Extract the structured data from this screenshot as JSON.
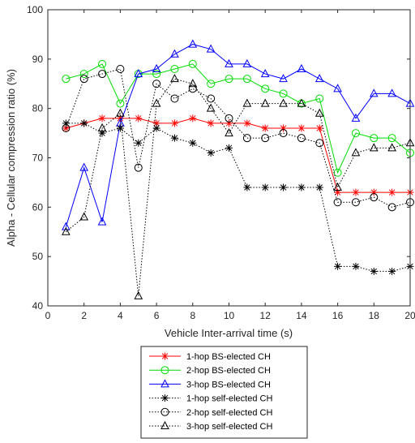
{
  "chart_data": {
    "type": "line",
    "xlabel": "Vehicle Inter-arrival time (s)",
    "ylabel": "Alpha - Cellular compression ratio (%)",
    "xlim": [
      0,
      20
    ],
    "ylim": [
      40,
      100
    ],
    "xticks": [
      "0",
      "2",
      "4",
      "6",
      "8",
      "10",
      "12",
      "14",
      "16",
      "18",
      "20"
    ],
    "yticks": [
      "40",
      "50",
      "60",
      "70",
      "80",
      "90",
      "100"
    ],
    "grid": false,
    "legend_position": "below plot",
    "x": [
      1,
      2,
      3,
      4,
      5,
      6,
      7,
      8,
      9,
      10,
      11,
      12,
      13,
      14,
      15,
      16,
      17,
      18,
      19,
      20
    ],
    "series": [
      {
        "name": "1-hop BS-elected CH",
        "color": "#ff0000",
        "marker": "asterisk",
        "linestyle": "solid",
        "values": [
          76,
          77,
          78,
          78,
          78,
          77,
          77,
          78,
          77,
          77,
          77,
          76,
          76,
          76,
          76,
          63,
          63,
          63,
          63,
          63
        ]
      },
      {
        "name": "2-hop BS-elected CH",
        "color": "#00dd00",
        "marker": "circle",
        "linestyle": "solid",
        "values": [
          86,
          87,
          89,
          81,
          87,
          87,
          88,
          89,
          85,
          86,
          86,
          84,
          83,
          81,
          82,
          67,
          75,
          74,
          74,
          71
        ]
      },
      {
        "name": "3-hop BS-elected CH",
        "color": "#0000ff",
        "marker": "triangle",
        "linestyle": "solid",
        "values": [
          56,
          68,
          57,
          77,
          87,
          88,
          91,
          93,
          92,
          89,
          89,
          87,
          86,
          88,
          86,
          84,
          78,
          83,
          83,
          81
        ]
      },
      {
        "name": "1-hop self-elected CH",
        "color": "#000000",
        "marker": "asterisk",
        "linestyle": "dotted",
        "values": [
          77,
          77,
          75,
          76,
          73,
          76,
          74,
          73,
          71,
          72,
          64,
          64,
          64,
          64,
          64,
          48,
          48,
          47,
          47,
          48
        ]
      },
      {
        "name": "2-hop self-elected CH",
        "color": "#000000",
        "marker": "circle",
        "linestyle": "dotted",
        "values": [
          76,
          86,
          87,
          88,
          68,
          85,
          82,
          84,
          82,
          78,
          74,
          74,
          75,
          74,
          73,
          61,
          61,
          62,
          60,
          61
        ]
      },
      {
        "name": "3-hop self-elected CH",
        "color": "#000000",
        "marker": "triangle",
        "linestyle": "dotted",
        "values": [
          55,
          58,
          76,
          79,
          42,
          81,
          86,
          85,
          80,
          75,
          81,
          81,
          81,
          81,
          79,
          64,
          71,
          72,
          72,
          73
        ]
      }
    ]
  }
}
